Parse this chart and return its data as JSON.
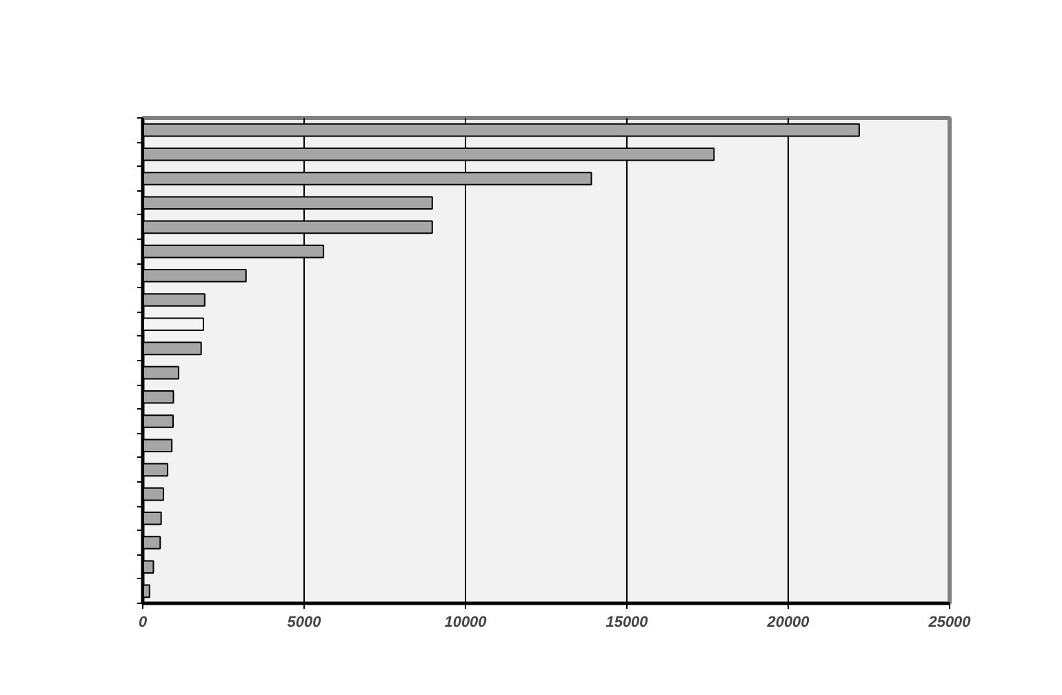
{
  "chart_data": {
    "type": "bar",
    "orientation": "horizontal",
    "categories": [
      null,
      null,
      null,
      null,
      null,
      null,
      null,
      null,
      null,
      null,
      null,
      null,
      null,
      null,
      null,
      null,
      null,
      null,
      null,
      null
    ],
    "values": [
      22200,
      17700,
      13900,
      8970,
      8970,
      5600,
      3200,
      1920,
      1880,
      1810,
      1110,
      950,
      940,
      900,
      770,
      640,
      570,
      540,
      330,
      210
    ],
    "colors": [
      "#a6a6a6",
      "#a6a6a6",
      "#a6a6a6",
      "#a6a6a6",
      "#a6a6a6",
      "#a6a6a6",
      "#a6a6a6",
      "#a6a6a6",
      "#f4f4f4",
      "#a6a6a6",
      "#a6a6a6",
      "#a6a6a6",
      "#a6a6a6",
      "#a6a6a6",
      "#a6a6a6",
      "#a6a6a6",
      "#a6a6a6",
      "#a6a6a6",
      "#a6a6a6",
      "#a6a6a6"
    ],
    "xlim": [
      0,
      25000
    ],
    "xticks": [
      0,
      5000,
      10000,
      15000,
      20000,
      25000
    ],
    "grid": "x"
  }
}
